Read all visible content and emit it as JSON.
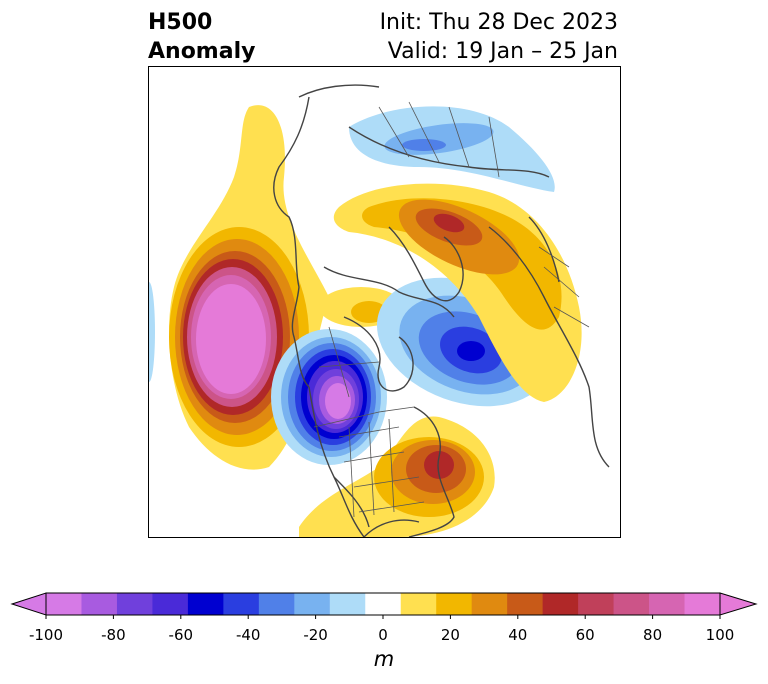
{
  "title": {
    "left_line1": "H500",
    "left_line2": "Anomaly",
    "right_line1": "Init: Thu 28 Dec 2023",
    "right_line2": "Valid: 19 Jan – 25 Jan"
  },
  "colorbar": {
    "units": "m",
    "ticks": [
      "-100",
      "-80",
      "-60",
      "-40",
      "-20",
      "0",
      "20",
      "40",
      "60",
      "80",
      "100"
    ],
    "levels": [
      -100,
      -90,
      -80,
      -70,
      -60,
      -50,
      -40,
      -30,
      -20,
      -10,
      10,
      20,
      30,
      40,
      50,
      60,
      70,
      80,
      90,
      100
    ],
    "colors": [
      "#d67ae6",
      "#a85be0",
      "#7040dc",
      "#4a2ad8",
      "#0000d0",
      "#2a3ee0",
      "#5080e8",
      "#78b2f0",
      "#aedcf8",
      "#ffffff",
      "#ffe050",
      "#f2b700",
      "#e08a10",
      "#c85a18",
      "#b02828",
      "#c0405a",
      "#cc5488",
      "#d665b2",
      "#e57ad8"
    ],
    "extend": "both"
  },
  "map": {
    "region": "Northern Hemisphere polar stereographic",
    "colors": {
      "magenta": "#e57ad8",
      "pink": "#d665b2",
      "rose": "#cc5488",
      "darkred": "#b02828",
      "orange_red": "#c85a18",
      "orange": "#e08a10",
      "gold": "#f2b700",
      "yellow": "#ffe050",
      "lightblue": "#aedcf8",
      "skyblue": "#78b2f0",
      "blue": "#5080e8",
      "royal": "#2a3ee0",
      "navy": "#0000d0",
      "indigo": "#4a2ad8",
      "violet": "#7040dc",
      "purple": "#a85be0",
      "lavender": "#d67ae6",
      "coast": "#444444"
    }
  }
}
